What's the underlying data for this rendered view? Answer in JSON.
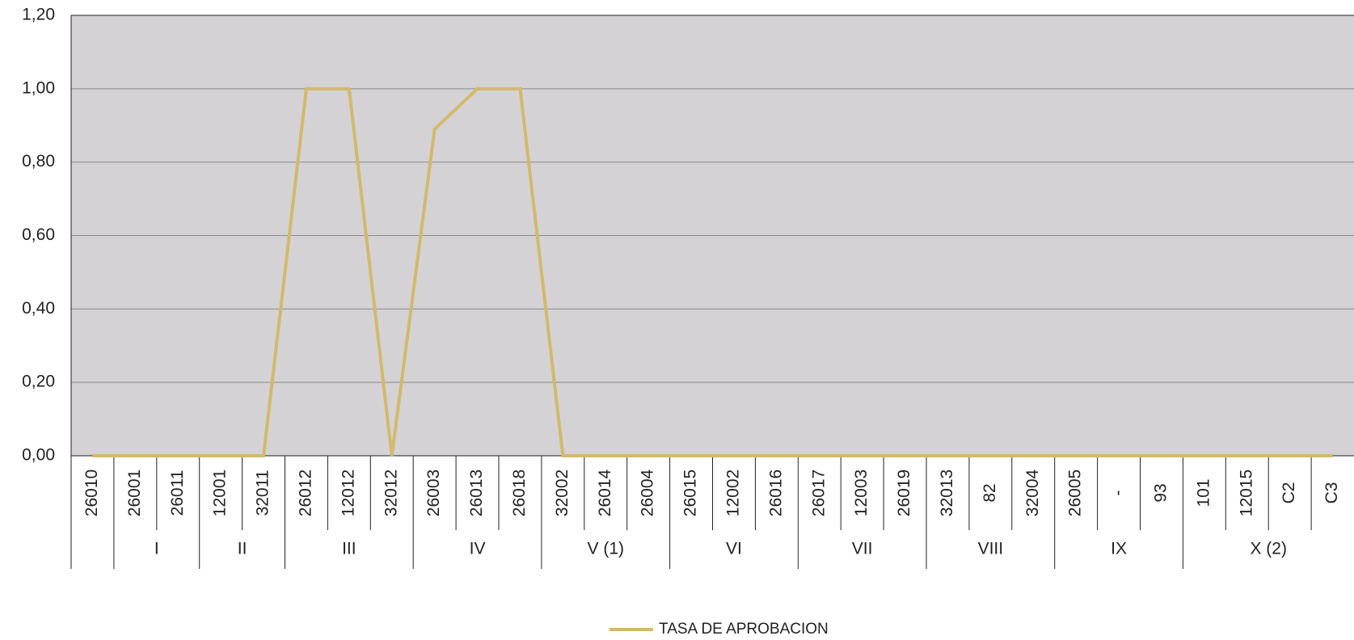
{
  "chart_data": {
    "type": "line",
    "groups": [
      {
        "label": null,
        "categories": [
          "26010"
        ]
      },
      {
        "label": "I",
        "categories": [
          "26001",
          "26011"
        ]
      },
      {
        "label": "II",
        "categories": [
          "12001",
          "32011"
        ]
      },
      {
        "label": "III",
        "categories": [
          "26012",
          "12012",
          "32012"
        ]
      },
      {
        "label": "IV",
        "categories": [
          "26003",
          "26013",
          "26018"
        ]
      },
      {
        "label": "V (1)",
        "categories": [
          "32002",
          "26014",
          "26004"
        ]
      },
      {
        "label": "VI",
        "categories": [
          "26015",
          "12002",
          "26016"
        ]
      },
      {
        "label": "VII",
        "categories": [
          "26017",
          "12003",
          "26019"
        ]
      },
      {
        "label": "VIII",
        "categories": [
          "32013",
          "82",
          "32004"
        ]
      },
      {
        "label": "IX",
        "categories": [
          "26005",
          "-",
          "93"
        ]
      },
      {
        "label": "X (2)",
        "categories": [
          "101",
          "12015",
          "C2",
          "C3"
        ]
      }
    ],
    "series": [
      {
        "name": "TASA DE APROBACION",
        "color": "#d2b96c",
        "values": [
          0,
          0,
          0,
          0,
          0,
          1,
          1,
          0,
          0.89,
          1,
          1,
          0,
          0,
          0,
          0,
          0,
          0,
          0,
          0,
          0,
          0,
          0,
          0,
          0,
          0,
          0,
          0,
          0,
          0,
          0
        ]
      }
    ],
    "ylim": [
      0,
      1.2
    ],
    "yticks": [
      {
        "value": 0,
        "label": "0,00"
      },
      {
        "value": 0.2,
        "label": "0,20"
      },
      {
        "value": 0.4,
        "label": "0,40"
      },
      {
        "value": 0.6,
        "label": "0,60"
      },
      {
        "value": 0.8,
        "label": "0,80"
      },
      {
        "value": 1,
        "label": "1,00"
      },
      {
        "value": 1.2,
        "label": "1,20"
      }
    ],
    "grid": true,
    "legend": "bottom"
  }
}
